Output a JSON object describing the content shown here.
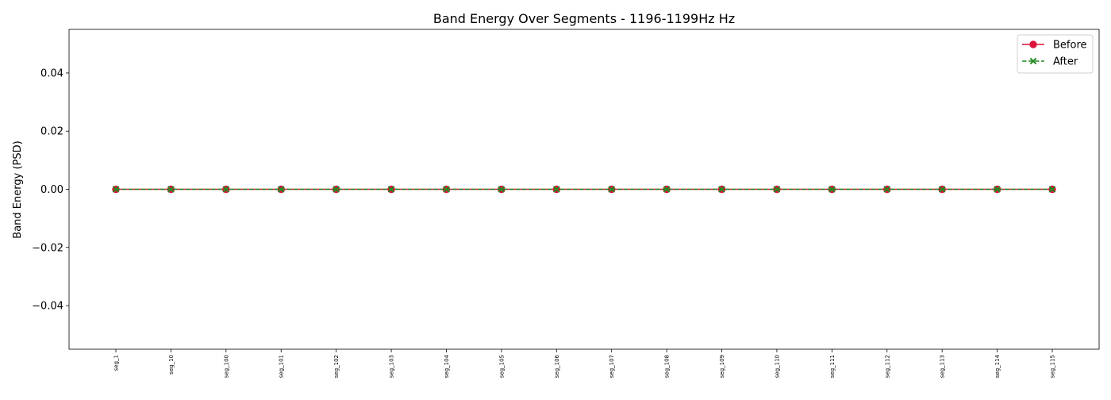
{
  "chart_data": {
    "type": "line",
    "title": "Band Energy Over Segments - 1196-1199Hz Hz",
    "xlabel": "",
    "ylabel": "Band Energy (PSD)",
    "categories": [
      "seg_1",
      "seg_10",
      "seg_100",
      "seg_101",
      "seg_102",
      "seg_103",
      "seg_104",
      "seg_105",
      "seg_106",
      "seg_107",
      "seg_108",
      "seg_109",
      "seg_110",
      "seg_111",
      "seg_112",
      "seg_113",
      "seg_114",
      "seg_115"
    ],
    "ylim": [
      -0.055,
      0.055
    ],
    "yticks": [
      -0.04,
      -0.02,
      0.0,
      0.02,
      0.04
    ],
    "ytick_labels": [
      "−0.04",
      "−0.02",
      "0.00",
      "0.02",
      "0.04"
    ],
    "grid": false,
    "legend_position": "top-right",
    "series": [
      {
        "name": "Before",
        "color": "#dc143c",
        "marker": "circle",
        "line_style": "solid",
        "values": [
          0,
          0,
          0,
          0,
          0,
          0,
          0,
          0,
          0,
          0,
          0,
          0,
          0,
          0,
          0,
          0,
          0,
          0
        ]
      },
      {
        "name": "After",
        "color": "#228b22",
        "marker": "x",
        "line_style": "dashed",
        "values": [
          0,
          0,
          0,
          0,
          0,
          0,
          0,
          0,
          0,
          0,
          0,
          0,
          0,
          0,
          0,
          0,
          0,
          0
        ]
      }
    ]
  }
}
